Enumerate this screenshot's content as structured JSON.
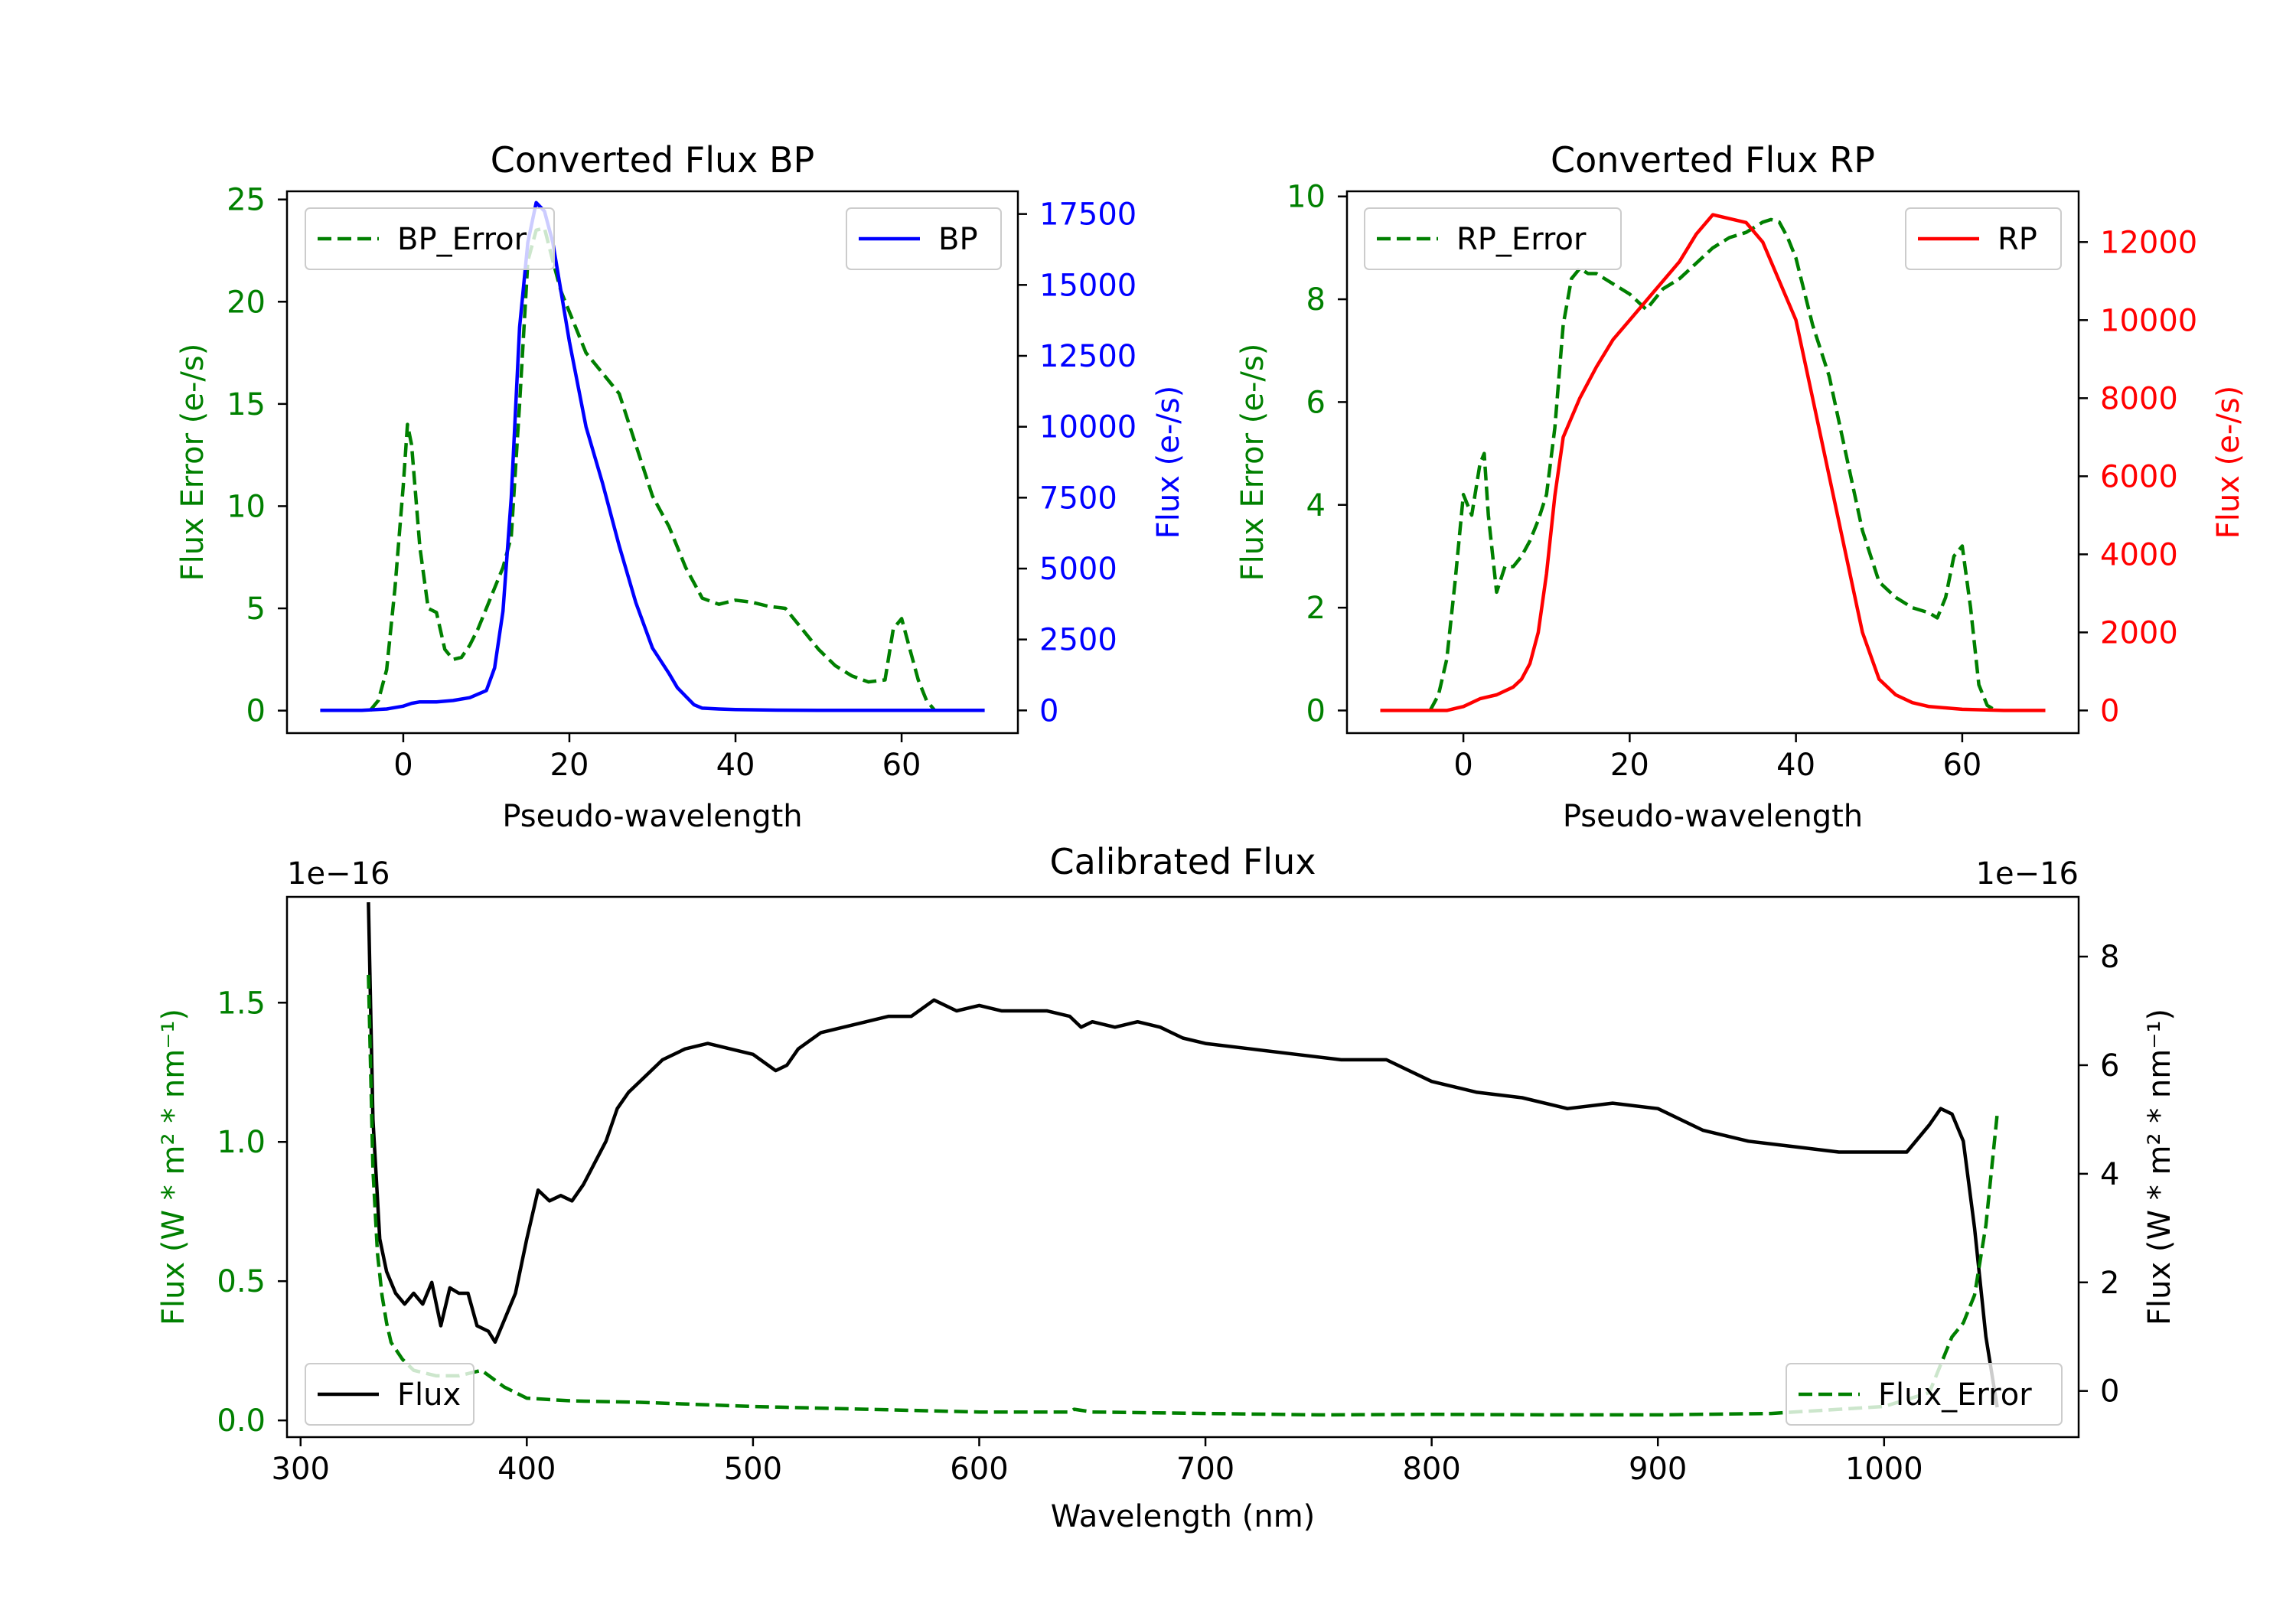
{
  "chart_data": [
    {
      "type": "line",
      "title": "Converted Flux BP",
      "xlabel": "Pseudo-wavelength",
      "ylabel_left": "Flux Error (e-/s)",
      "ylabel_right": "Flux (e-/s)",
      "xlim": [
        -14,
        74
      ],
      "ylim_left": [
        -1.1,
        25.4
      ],
      "ylim_right": [
        -800,
        18300
      ],
      "xticks": [
        0,
        20,
        40,
        60
      ],
      "yticks_left": [
        0,
        5,
        10,
        15,
        20,
        25
      ],
      "yticks_right": [
        0,
        2500,
        5000,
        7500,
        10000,
        12500,
        15000,
        17500
      ],
      "series": [
        {
          "name": "BP_Error",
          "axis": "left",
          "style": "dashed",
          "color": "#008000",
          "x": [
            -4,
            -3,
            -2,
            -1,
            0,
            0.5,
            1,
            2,
            3,
            4,
            5,
            6,
            7,
            8,
            9,
            10,
            11,
            12,
            13,
            14,
            15,
            16,
            17,
            18,
            19,
            20,
            22,
            24,
            26,
            28,
            30,
            32,
            34,
            36,
            38,
            40,
            42,
            44,
            46,
            48,
            50,
            52,
            54,
            56,
            58,
            59,
            60,
            61,
            62,
            63,
            64
          ],
          "y": [
            0,
            0.5,
            2,
            6,
            11,
            14,
            13,
            8,
            5,
            4.8,
            3,
            2.5,
            2.6,
            3.2,
            4,
            5,
            6,
            7,
            8.5,
            15,
            22,
            23.5,
            23.6,
            22,
            20.5,
            19.5,
            17.5,
            16.5,
            15.5,
            13,
            10.5,
            9,
            7,
            5.5,
            5.2,
            5.4,
            5.3,
            5.1,
            5,
            4,
            3,
            2.2,
            1.7,
            1.4,
            1.5,
            4,
            4.5,
            3,
            1.5,
            0.5,
            0
          ]
        },
        {
          "name": "BP",
          "axis": "right",
          "style": "solid",
          "color": "#0000ff",
          "x": [
            -10,
            -5,
            -2,
            0,
            1,
            2,
            4,
            6,
            8,
            10,
            11,
            12,
            13,
            14,
            15,
            16,
            17,
            18,
            20,
            22,
            24,
            26,
            28,
            30,
            32,
            33,
            34,
            35,
            36,
            38,
            40,
            45,
            50,
            55,
            60,
            65,
            70
          ],
          "y": [
            0,
            0,
            50,
            150,
            250,
            300,
            300,
            350,
            450,
            700,
            1500,
            3500,
            7500,
            13500,
            16500,
            17900,
            17600,
            16500,
            13000,
            10000,
            8000,
            5800,
            3800,
            2200,
            1300,
            800,
            500,
            200,
            80,
            50,
            30,
            10,
            5,
            0,
            0,
            0,
            0
          ]
        }
      ],
      "legend": [
        {
          "label": "BP_Error",
          "position": "upper-left"
        },
        {
          "label": "BP",
          "position": "upper-right"
        }
      ]
    },
    {
      "type": "line",
      "title": "Converted Flux RP",
      "xlabel": "Pseudo-wavelength",
      "ylabel_left": "Flux Error (e-/s)",
      "ylabel_right": "Flux (e-/s)",
      "xlim": [
        -14,
        74
      ],
      "ylim_left": [
        -0.44,
        10.1
      ],
      "ylim_right": [
        -580,
        13300
      ],
      "xticks": [
        0,
        20,
        40,
        60
      ],
      "yticks_left": [
        0,
        2,
        4,
        6,
        8,
        10
      ],
      "yticks_right": [
        0,
        2000,
        4000,
        6000,
        8000,
        10000,
        12000
      ],
      "series": [
        {
          "name": "RP_Error",
          "axis": "left",
          "style": "dashed",
          "color": "#008000",
          "x": [
            -4,
            -3,
            -2,
            -1,
            0,
            1,
            2,
            2.5,
            3,
            4,
            5,
            6,
            7,
            8,
            9,
            10,
            11,
            12,
            13,
            14,
            15,
            16,
            18,
            20,
            22,
            24,
            26,
            28,
            30,
            32,
            34,
            36,
            37,
            38,
            39,
            40,
            42,
            44,
            46,
            48,
            50,
            52,
            54,
            56,
            57,
            58,
            59,
            60,
            61,
            62,
            63,
            64
          ],
          "y": [
            0,
            0.3,
            1,
            2.5,
            4.2,
            3.8,
            4.8,
            5,
            3.8,
            2.3,
            2.8,
            2.8,
            3,
            3.3,
            3.7,
            4.2,
            5.5,
            7.5,
            8.4,
            8.6,
            8.5,
            8.5,
            8.3,
            8.1,
            7.8,
            8.2,
            8.4,
            8.7,
            9,
            9.2,
            9.3,
            9.5,
            9.55,
            9.5,
            9.2,
            8.8,
            7.5,
            6.5,
            5,
            3.5,
            2.5,
            2.2,
            2,
            1.9,
            1.8,
            2.2,
            3,
            3.2,
            2,
            0.5,
            0.1,
            0
          ]
        },
        {
          "name": "RP",
          "axis": "right",
          "style": "solid",
          "color": "#ff0000",
          "x": [
            -10,
            -5,
            -2,
            0,
            2,
            4,
            6,
            7,
            8,
            9,
            10,
            11,
            12,
            13,
            14,
            16,
            18,
            20,
            22,
            24,
            26,
            28,
            30,
            32,
            34,
            36,
            38,
            40,
            42,
            44,
            46,
            48,
            50,
            52,
            54,
            56,
            60,
            65,
            70
          ],
          "y": [
            0,
            0,
            0,
            100,
            300,
            400,
            600,
            800,
            1200,
            2000,
            3500,
            5500,
            7000,
            7500,
            8000,
            8800,
            9500,
            10000,
            10500,
            11000,
            11500,
            12200,
            12700,
            12600,
            12500,
            12000,
            11000,
            10000,
            8000,
            6000,
            4000,
            2000,
            800,
            400,
            200,
            100,
            30,
            0,
            0
          ]
        }
      ],
      "legend": [
        {
          "label": "RP_Error",
          "position": "upper-left"
        },
        {
          "label": "RP",
          "position": "upper-right"
        }
      ]
    },
    {
      "type": "line",
      "title": "Calibrated Flux",
      "xlabel": "Wavelength (nm)",
      "ylabel_left": "Flux (W * m² * nm⁻¹)",
      "ylabel_right": "Flux (W * m² * nm⁻¹)",
      "offset_left": "1e−16",
      "offset_right": "1e−16",
      "xlim": [
        294,
        1086
      ],
      "ylim_left": [
        -0.06,
        1.88
      ],
      "ylim_right": [
        -0.85,
        9.1
      ],
      "xticks": [
        300,
        400,
        500,
        600,
        700,
        800,
        900,
        1000
      ],
      "yticks_left": [
        "0.0",
        "0.5",
        "1.0",
        "1.5"
      ],
      "yticks_right": [
        0,
        2,
        4,
        6,
        8
      ],
      "series": [
        {
          "name": "Flux",
          "axis": "right",
          "style": "solid",
          "color": "#000000",
          "x": [
            330,
            332,
            335,
            338,
            342,
            346,
            350,
            354,
            358,
            362,
            366,
            370,
            374,
            378,
            383,
            386,
            390,
            395,
            400,
            405,
            410,
            415,
            420,
            425,
            430,
            435,
            440,
            445,
            450,
            460,
            470,
            480,
            490,
            500,
            510,
            515,
            520,
            530,
            540,
            550,
            560,
            570,
            580,
            590,
            600,
            610,
            620,
            630,
            640,
            645,
            650,
            660,
            670,
            680,
            690,
            700,
            720,
            740,
            760,
            780,
            800,
            820,
            840,
            860,
            880,
            900,
            920,
            940,
            960,
            980,
            1000,
            1010,
            1020,
            1025,
            1030,
            1035,
            1040,
            1045,
            1050
          ],
          "y": [
            9,
            5,
            2.8,
            2.2,
            1.8,
            1.6,
            1.8,
            1.6,
            2,
            1.2,
            1.9,
            1.8,
            1.8,
            1.2,
            1.1,
            0.9,
            1.3,
            1.8,
            2.8,
            3.7,
            3.5,
            3.6,
            3.5,
            3.8,
            4.2,
            4.6,
            5.2,
            5.5,
            5.7,
            6.1,
            6.3,
            6.4,
            6.3,
            6.2,
            5.9,
            6,
            6.3,
            6.6,
            6.7,
            6.8,
            6.9,
            6.9,
            7.2,
            7.0,
            7.1,
            7.0,
            7.0,
            7.0,
            6.9,
            6.7,
            6.8,
            6.7,
            6.8,
            6.7,
            6.5,
            6.4,
            6.3,
            6.2,
            6.1,
            6.1,
            5.7,
            5.5,
            5.4,
            5.2,
            5.3,
            5.2,
            4.8,
            4.6,
            4.5,
            4.4,
            4.4,
            4.4,
            4.9,
            5.2,
            5.1,
            4.6,
            3,
            1.0,
            -0.3
          ]
        },
        {
          "name": "Flux_Error",
          "axis": "left",
          "style": "dashed",
          "color": "#008000",
          "x": [
            330,
            332,
            334,
            336,
            338,
            340,
            345,
            350,
            360,
            370,
            380,
            390,
            400,
            420,
            450,
            500,
            550,
            600,
            640,
            642,
            650,
            700,
            750,
            800,
            850,
            900,
            950,
            1000,
            1020,
            1025,
            1030,
            1035,
            1040,
            1045,
            1050
          ],
          "y": [
            1.6,
            0.9,
            0.6,
            0.45,
            0.35,
            0.28,
            0.22,
            0.18,
            0.16,
            0.16,
            0.18,
            0.12,
            0.08,
            0.07,
            0.065,
            0.05,
            0.04,
            0.03,
            0.03,
            0.04,
            0.03,
            0.025,
            0.02,
            0.022,
            0.02,
            0.02,
            0.025,
            0.05,
            0.1,
            0.2,
            0.3,
            0.35,
            0.45,
            0.7,
            1.1
          ]
        }
      ],
      "legend": [
        {
          "label": "Flux",
          "position": "lower-left"
        },
        {
          "label": "Flux_Error",
          "position": "lower-right"
        }
      ]
    }
  ]
}
